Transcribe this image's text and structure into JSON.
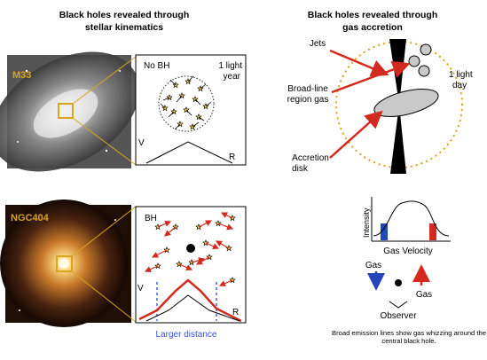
{
  "left_panel": {
    "heading_line1": "Black holes revealed through",
    "heading_line2": "stellar kinematics",
    "top_galaxy_label": "M33",
    "top_box": {
      "label": "No BH",
      "scale_line1": "1 light",
      "scale_line2": "year",
      "v_axis": "V",
      "r_axis": "R"
    },
    "bottom_galaxy_label": "NGC404",
    "bottom_box": {
      "label": "BH",
      "v_axis": "V",
      "r_axis": "R"
    },
    "larger_distance": "Larger distance"
  },
  "right_panel": {
    "heading_line1": "Black holes revealed through",
    "heading_line2": "gas accretion",
    "jets_label": "Jets",
    "blr_line1": "Broad-line",
    "blr_line2": "region gas",
    "scale_line1": "1 light",
    "scale_line2": "day",
    "accretion_line1": "Accretion",
    "accretion_line2": "disk",
    "intensity_label": "Intensity",
    "gas_velocity_label": "Gas Velocity",
    "gas_left": "Gas",
    "gas_right": "Gas",
    "observer_label": "Observer",
    "caption_line1": "Broad emission lines show gas whizzing around the",
    "caption_line2": "central black hole."
  },
  "colors": {
    "accent_yellow": "#d9a521",
    "arrow_red": "#d32a1f",
    "blue": "#2446b8",
    "dashed_blue": "#3a52d0"
  }
}
